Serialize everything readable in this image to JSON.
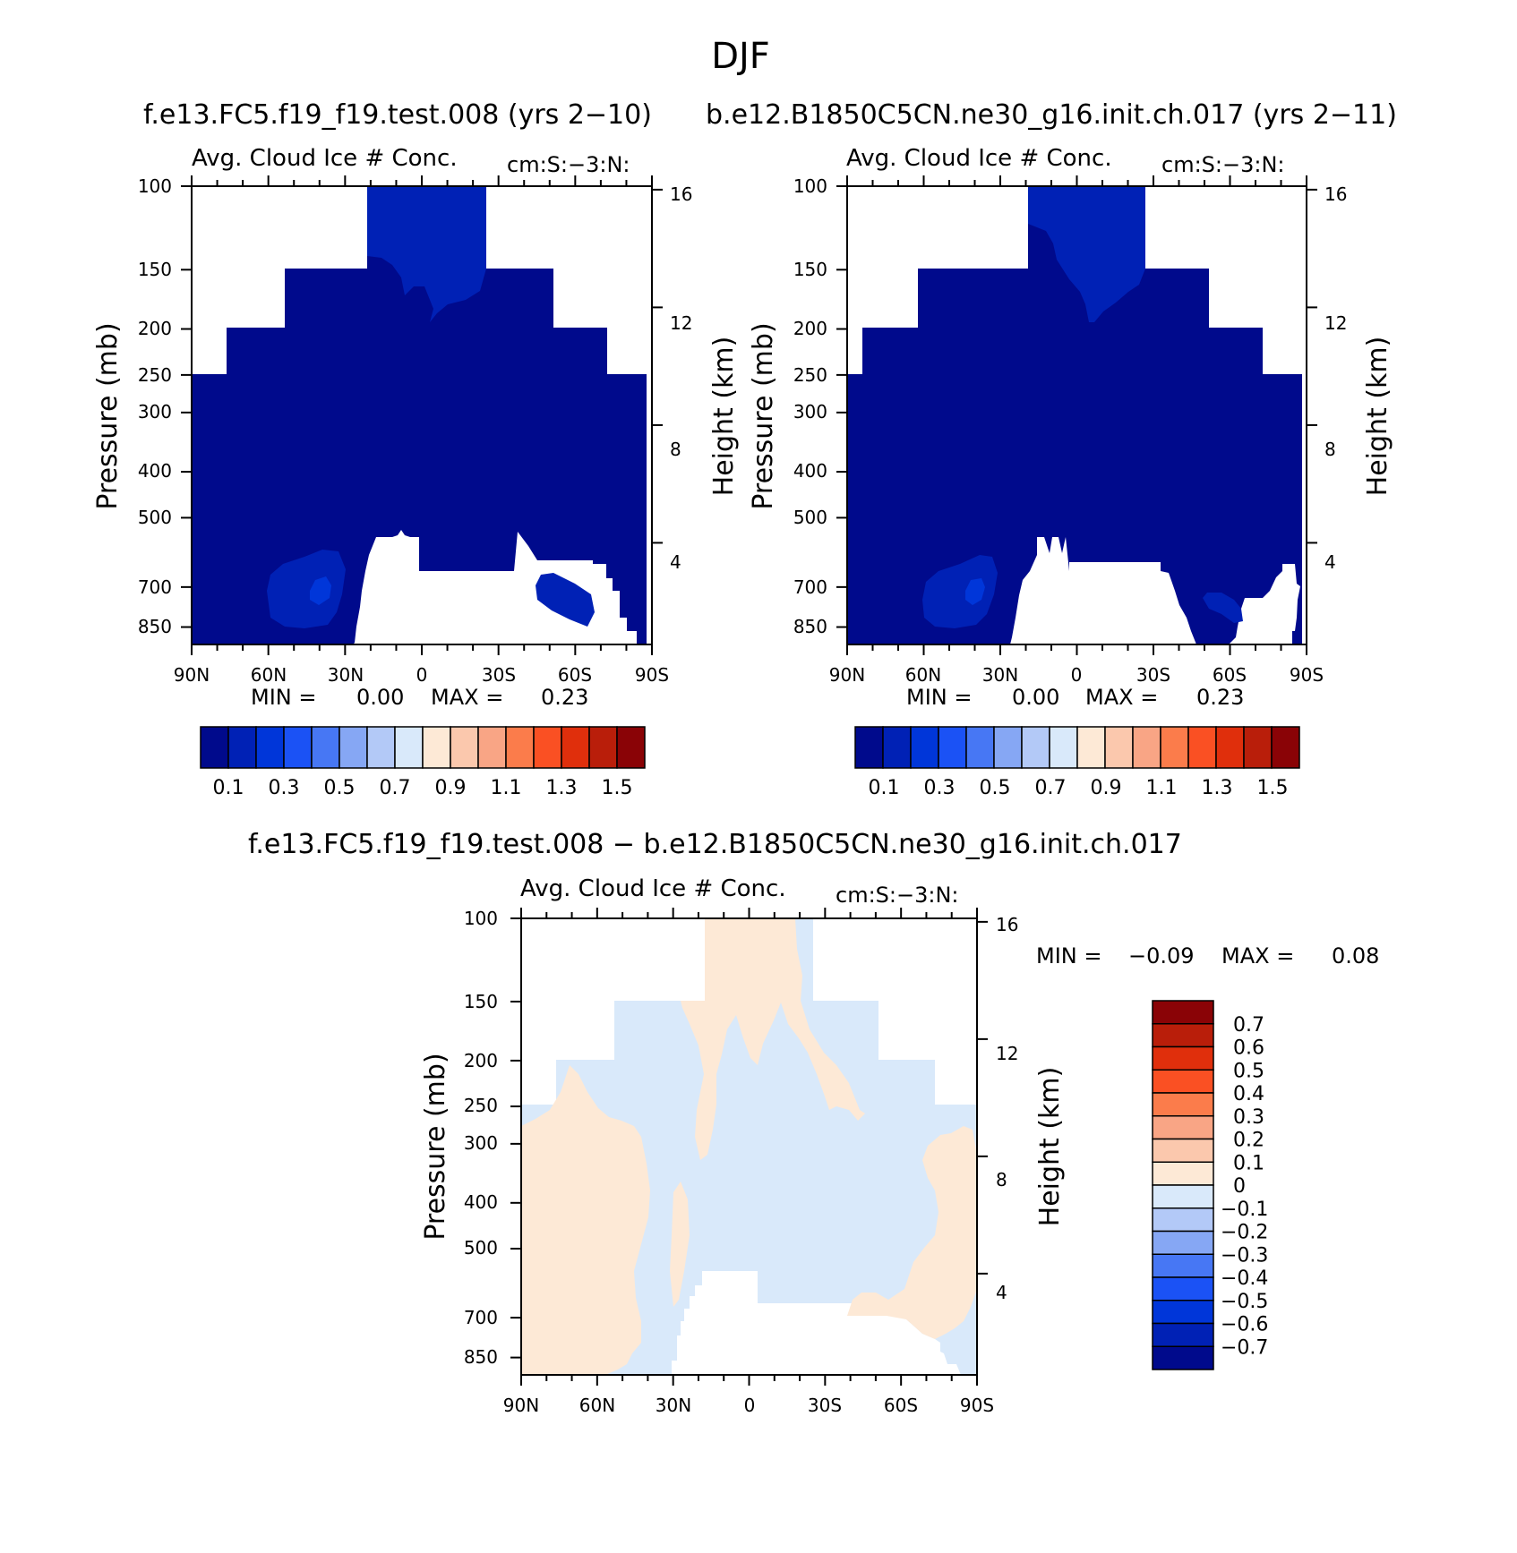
{
  "page_title": "DJF",
  "colors": {
    "abs": [
      "#000a8c",
      "#0021b5",
      "#0036d9",
      "#1b52f5",
      "#4777f4",
      "#86a7f4",
      "#b3c9f7",
      "#d9e9fa",
      "#fde9d6",
      "#fbc8ad",
      "#f9a585",
      "#fb7c4b",
      "#fa5023",
      "#e02f0c",
      "#b91e0a",
      "#8a0306"
    ],
    "diff": [
      "#000a8c",
      "#0021b5",
      "#0036d9",
      "#1b52f5",
      "#4777f4",
      "#86a7f4",
      "#b3c9f7",
      "#d9e9fa",
      "#fde9d6",
      "#fbc8ad",
      "#f9a585",
      "#fb7c4b",
      "#fa5023",
      "#e02f0c",
      "#b91e0a",
      "#8a0306"
    ]
  },
  "chart_data": [
    {
      "type": "heatmap",
      "case_title": "f.e13.FC5.f19_f19.test.008 (yrs 2−10)",
      "title": "Avg. Cloud Ice # Conc.",
      "units": "cm:S:−3:N:",
      "xlabel": "",
      "ylabel": "Pressure (mb)",
      "ylabel_right": "Height (km)",
      "xticks": [
        "90N",
        "60N",
        "30N",
        "0",
        "30S",
        "60S",
        "90S"
      ],
      "yticks": [
        "100",
        "150",
        "200",
        "250",
        "300",
        "400",
        "500",
        "700",
        "850"
      ],
      "yticks_right": [
        "16",
        "12",
        "8",
        "4"
      ],
      "xlim": [
        -90,
        90
      ],
      "ylim": [
        100,
        925
      ],
      "stats": {
        "min_label": "MIN =",
        "min": "0.00",
        "max_label": "MAX =",
        "max": "0.23"
      },
      "colorbar_labels": [
        "0.1",
        "0.3",
        "0.5",
        "0.7",
        "0.9",
        "1.1",
        "1.3",
        "1.5"
      ],
      "contour_levels": [
        0.1,
        0.2,
        0.3,
        0.4,
        0.5,
        0.6,
        0.7,
        0.8,
        0.9,
        1.0,
        1.1,
        1.2,
        1.3,
        1.4,
        1.5
      ]
    },
    {
      "type": "heatmap",
      "case_title": "b.e12.B1850C5CN.ne30_g16.init.ch.017 (yrs 2−11)",
      "title": "Avg. Cloud Ice # Conc.",
      "units": "cm:S:−3:N:",
      "xlabel": "",
      "ylabel": "Pressure (mb)",
      "ylabel_right": "Height (km)",
      "xticks": [
        "90N",
        "60N",
        "30N",
        "0",
        "30S",
        "60S",
        "90S"
      ],
      "yticks": [
        "100",
        "150",
        "200",
        "250",
        "300",
        "400",
        "500",
        "700",
        "850"
      ],
      "yticks_right": [
        "16",
        "12",
        "8",
        "4"
      ],
      "xlim": [
        -90,
        90
      ],
      "ylim": [
        100,
        925
      ],
      "stats": {
        "min_label": "MIN =",
        "min": "0.00",
        "max_label": "MAX =",
        "max": "0.23"
      },
      "colorbar_labels": [
        "0.1",
        "0.3",
        "0.5",
        "0.7",
        "0.9",
        "1.1",
        "1.3",
        "1.5"
      ],
      "contour_levels": [
        0.1,
        0.2,
        0.3,
        0.4,
        0.5,
        0.6,
        0.7,
        0.8,
        0.9,
        1.0,
        1.1,
        1.2,
        1.3,
        1.4,
        1.5
      ]
    },
    {
      "type": "heatmap",
      "case_title": "f.e13.FC5.f19_f19.test.008 − b.e12.B1850C5CN.ne30_g16.init.ch.017",
      "title": "Avg. Cloud Ice # Conc.",
      "units": "cm:S:−3:N:",
      "xlabel": "",
      "ylabel": "Pressure (mb)",
      "ylabel_right": "Height (km)",
      "xticks": [
        "90N",
        "60N",
        "30N",
        "0",
        "30S",
        "60S",
        "90S"
      ],
      "yticks": [
        "100",
        "150",
        "200",
        "250",
        "300",
        "400",
        "500",
        "700",
        "850"
      ],
      "yticks_right": [
        "16",
        "12",
        "8",
        "4"
      ],
      "xlim": [
        -90,
        90
      ],
      "ylim": [
        100,
        925
      ],
      "stats": {
        "min_label": "MIN =",
        "min": "−0.09",
        "max_label": "MAX =",
        "max": "0.08"
      },
      "colorbar_labels": [
        "0.7",
        "0.6",
        "0.5",
        "0.4",
        "0.3",
        "0.2",
        "0.1",
        "0",
        "−0.1",
        "−0.2",
        "−0.3",
        "−0.4",
        "−0.5",
        "−0.6",
        "−0.7"
      ],
      "contour_levels": [
        -0.7,
        -0.6,
        -0.5,
        -0.4,
        -0.3,
        -0.2,
        -0.1,
        0,
        0.1,
        0.2,
        0.3,
        0.4,
        0.5,
        0.6,
        0.7
      ]
    }
  ]
}
